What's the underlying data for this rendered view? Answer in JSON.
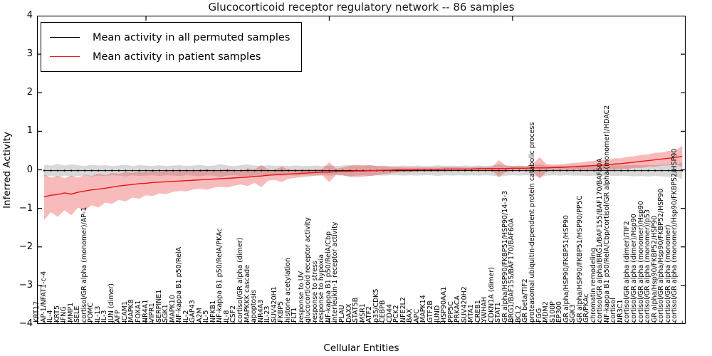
{
  "title": "Glucocorticoid receptor regulatory network -- 86 samples",
  "legend": {
    "permuted_label": "Mean activity in all permuted samples",
    "patient_label": "Mean activity in patient samples"
  },
  "axes": {
    "ylabel": "Inferred Activity",
    "xlabel": "Cellular Entities",
    "ytick_labels": [
      "4",
      "3",
      "2",
      "1",
      "0",
      "−1",
      "−2",
      "−3",
      "−4"
    ],
    "ytick_values": [
      4,
      3,
      2,
      1,
      0,
      -1,
      -2,
      -3,
      -4
    ],
    "ylim": [
      -4,
      4
    ]
  },
  "colors": {
    "patient_line": "#ee1111",
    "permuted_line": "#000000",
    "patient_band": "rgba(230,50,50,0.33)",
    "permuted_band": "rgba(125,125,125,0.30)",
    "axis": "#000000"
  },
  "chart_data": {
    "type": "line",
    "title": "Glucocorticoid receptor regulatory network -- 86 samples",
    "xlabel": "Cellular Entities",
    "ylabel": "Inferred Activity",
    "ylim": [
      -4,
      4
    ],
    "grid": false,
    "legend_position": "upper left",
    "top_tick_indices": [
      15,
      42,
      69
    ],
    "categories": [
      "KRT17",
      "AP-1/NFAT1-c-4",
      "IL-4",
      "KRT5",
      "IFNG",
      "MMP1",
      "SELE",
      "cortisol/GR alpha (monomer)/AP-1",
      "POMC",
      "IL-13",
      "IL-3",
      "JUN (dimer)",
      "AFP",
      "ICAM1",
      "MAPK8",
      "FOXA1",
      "NR4A1",
      "VIPR1",
      "SERPINE1",
      "SGK1",
      "MAPK10",
      "NF-kappa B1 p50/RelA",
      "IL-2",
      "GAP43",
      "A2M",
      "IL-5",
      "NFKB1",
      "NF-kappa B1 p50/RelA/PKAc",
      "IL-8",
      "CSF2",
      "cortisol/GR alpha (dimer)",
      "MAPKKK cascade",
      "apoptosis",
      "NR4A3",
      "IL-23",
      "SUV420H1",
      "FKBP5",
      "histone acetylation",
      "FLT1",
      "response to UV",
      "glucocorticoid receptor activity",
      "response to stress",
      "response to hypoxia",
      "NF-kappa B1 p50/RelA/Cbp",
      "interleukin-1 receptor activity",
      "PLAU",
      "DAXX",
      "STAT5B",
      "MSR1",
      "ATF2",
      "p35/CDK5",
      "CEBPB",
      "CD44",
      "PCK2",
      "NFE2L2",
      "BAX",
      "APC",
      "MAPK14",
      "GTF2B",
      "JUND",
      "HSP90AA1",
      "PPP5C",
      "PRKACA",
      "SUV420H2",
      "MTA1",
      "CREB1",
      "YWHAH",
      "CDKN1A (dimer)",
      "STAT1",
      "GR alpha/HSP90/FKBP51/HSP90/14-3-3",
      "BRG1/BAF155/BAF170/BAF60A",
      "BCL2",
      "GR beta/TIF2",
      "proteasomal ubiquitin-dependent protein catabolic process",
      "FGG",
      "MDM2",
      "S100P",
      "EP300",
      "GR alpha/HSP90/FKBP51/HSP90",
      "SGK3",
      "GR alpha/HSP90/FKBP51/HSP90/PP5C",
      "GR/PKAc",
      "chromatin remodeling",
      "cortisol/GR alpha/BRG1/BAF155/BAF170/BAF60A",
      "NF-kappa B1 p50/RelA/Cbp/cortisol/GR alpha (monomer)/HDAC2",
      "cortisol",
      "NR3C1",
      "cortisol/GR alpha (dimer)/TIF2",
      "cortisol/GR alpha (dimer)/Hsp90",
      "cortisol/GR alpha (monomer)/Hsp90",
      "cortisol/GR alpha (monomer)/p53",
      "GR alpha/Hsp90/FKBP52/HSP90",
      "cortisol/GR alpha/Hsp90/FKBP52/HSP90",
      "cortisol/GR alpha (monomer)",
      "cortisol/GR alpha (monomer)/Hsp90/FKBP52/HSP90"
    ],
    "series": [
      {
        "name": "Mean activity in all permuted samples",
        "constant_value": -0.02
      },
      {
        "name": "Mean activity in patient samples",
        "values": [
          -0.7,
          -0.66,
          -0.64,
          -0.6,
          -0.63,
          -0.58,
          -0.55,
          -0.52,
          -0.5,
          -0.48,
          -0.45,
          -0.42,
          -0.4,
          -0.38,
          -0.36,
          -0.35,
          -0.33,
          -0.32,
          -0.31,
          -0.3,
          -0.29,
          -0.28,
          -0.27,
          -0.26,
          -0.25,
          -0.24,
          -0.23,
          -0.22,
          -0.21,
          -0.2,
          -0.19,
          -0.17,
          -0.16,
          -0.14,
          -0.13,
          -0.12,
          -0.11,
          -0.1,
          -0.09,
          -0.08,
          -0.07,
          -0.06,
          -0.06,
          -0.05,
          -0.04,
          -0.04,
          -0.03,
          -0.03,
          -0.02,
          -0.02,
          -0.01,
          -0.01,
          0.0,
          0.0,
          0.0,
          0.01,
          0.01,
          0.01,
          0.01,
          0.02,
          0.02,
          0.02,
          0.02,
          0.02,
          0.03,
          0.03,
          0.03,
          0.03,
          0.03,
          0.04,
          0.04,
          0.04,
          0.05,
          0.05,
          0.05,
          0.06,
          0.06,
          0.07,
          0.08,
          0.09,
          0.1,
          0.11,
          0.12,
          0.13,
          0.15,
          0.16,
          0.18,
          0.2,
          0.22,
          0.24,
          0.26,
          0.28,
          0.3,
          0.32,
          0.35
        ]
      }
    ],
    "bands": {
      "permuted_half_width": [
        0.15,
        0.13,
        0.17,
        0.13,
        0.16,
        0.14,
        0.12,
        0.15,
        0.13,
        0.14,
        0.12,
        0.13,
        0.15,
        0.12,
        0.14,
        0.13,
        0.12,
        0.14,
        0.12,
        0.13,
        0.14,
        0.12,
        0.13,
        0.15,
        0.12,
        0.13,
        0.17,
        0.13,
        0.12,
        0.14,
        0.16,
        0.13,
        0.12,
        0.14,
        0.12,
        0.13,
        0.12,
        0.13,
        0.12,
        0.12,
        0.13,
        0.12,
        0.13,
        0.12,
        0.13,
        0.15,
        0.13,
        0.12,
        0.14,
        0.12,
        0.13,
        0.12,
        0.12,
        0.13,
        0.12,
        0.13,
        0.12,
        0.12,
        0.14,
        0.12,
        0.13,
        0.12,
        0.13,
        0.12,
        0.13,
        0.12,
        0.13,
        0.16,
        0.13,
        0.12,
        0.13,
        0.12,
        0.13,
        0.17,
        0.13,
        0.12,
        0.13,
        0.12,
        0.13,
        0.13,
        0.14,
        0.13,
        0.14,
        0.13,
        0.14,
        0.13,
        0.14,
        0.15,
        0.14,
        0.15,
        0.14,
        0.15,
        0.16,
        0.15,
        0.22
      ],
      "patient_low": [
        -1.3,
        -1.1,
        -1.22,
        -1.05,
        -1.18,
        -0.98,
        -1.05,
        -0.92,
        -0.98,
        -0.85,
        -0.88,
        -0.78,
        -0.82,
        -0.72,
        -0.75,
        -0.66,
        -0.68,
        -0.61,
        -0.63,
        -0.57,
        -0.55,
        -0.56,
        -0.51,
        -0.49,
        -0.52,
        -0.46,
        -0.44,
        -0.46,
        -0.41,
        -0.38,
        -0.42,
        -0.34,
        -0.45,
        -0.28,
        -0.26,
        -0.32,
        -0.23,
        -0.21,
        -0.19,
        -0.17,
        -0.15,
        -0.14,
        -0.32,
        -0.13,
        -0.14,
        -0.18,
        -0.19,
        -0.18,
        -0.16,
        -0.14,
        -0.11,
        -0.09,
        -0.07,
        -0.06,
        -0.06,
        -0.04,
        -0.04,
        -0.04,
        -0.04,
        -0.03,
        -0.03,
        -0.03,
        -0.02,
        -0.02,
        -0.02,
        -0.01,
        -0.02,
        -0.19,
        -0.05,
        -0.02,
        -0.02,
        -0.01,
        -0.05,
        -0.23,
        -0.05,
        -0.02,
        -0.02,
        -0.02,
        -0.02,
        -0.01,
        -0.02,
        -0.01,
        -0.02,
        0.0,
        0.0,
        0.02,
        0.02,
        0.05,
        0.05,
        0.08,
        0.08,
        0.11,
        0.11,
        0.14,
        0.07
      ],
      "patient_high": [
        -0.12,
        -0.2,
        -0.16,
        -0.22,
        -0.15,
        -0.2,
        -0.12,
        -0.16,
        -0.1,
        -0.14,
        -0.08,
        -0.1,
        -0.06,
        -0.08,
        -0.04,
        -0.06,
        -0.02,
        -0.05,
        -0.02,
        -0.04,
        -0.02,
        0.0,
        -0.03,
        0.0,
        0.02,
        -0.02,
        0.0,
        0.02,
        -0.01,
        -0.02,
        0.04,
        0.0,
        0.13,
        0.0,
        0.0,
        0.08,
        0.01,
        0.01,
        0.01,
        0.01,
        0.01,
        0.02,
        0.2,
        0.03,
        0.06,
        0.1,
        0.13,
        0.12,
        0.12,
        0.1,
        0.09,
        0.07,
        0.07,
        0.06,
        0.06,
        0.06,
        0.06,
        0.06,
        0.06,
        0.07,
        0.07,
        0.07,
        0.06,
        0.06,
        0.08,
        0.07,
        0.08,
        0.25,
        0.11,
        0.1,
        0.1,
        0.09,
        0.15,
        0.33,
        0.15,
        0.14,
        0.14,
        0.16,
        0.18,
        0.19,
        0.22,
        0.23,
        0.26,
        0.26,
        0.3,
        0.3,
        0.34,
        0.35,
        0.39,
        0.4,
        0.44,
        0.45,
        0.49,
        0.5,
        0.63
      ]
    }
  },
  "layout_values": {
    "n_points": 95
  }
}
